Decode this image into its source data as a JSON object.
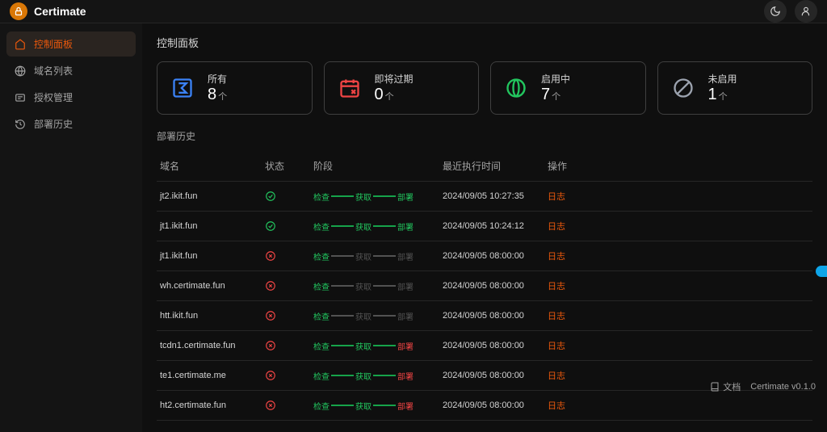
{
  "brand": {
    "name": "Certimate"
  },
  "sidebar": {
    "items": [
      {
        "label": "控制面板"
      },
      {
        "label": "域名列表"
      },
      {
        "label": "授权管理"
      },
      {
        "label": "部署历史"
      }
    ]
  },
  "page": {
    "title": "控制面板"
  },
  "stats": {
    "all": {
      "label": "所有",
      "value": "8",
      "unit": "个",
      "icon_color": "#3b82f6"
    },
    "expiring": {
      "label": "即将过期",
      "value": "0",
      "unit": "个",
      "icon_color": "#ef4444"
    },
    "active": {
      "label": "启用中",
      "value": "7",
      "unit": "个",
      "icon_color": "#22c55e"
    },
    "disabled": {
      "label": "未启用",
      "value": "1",
      "unit": "个",
      "icon_color": "#9ca3af"
    }
  },
  "history": {
    "section_title": "部署历史",
    "columns": {
      "domain": "域名",
      "status": "状态",
      "stage": "阶段",
      "time": "最近执行时间",
      "action": "操作"
    },
    "stage_labels": [
      "检查",
      "获取",
      "部署"
    ],
    "action_label": "日志",
    "colors": {
      "success": "#22c55e",
      "error": "#ef4444",
      "gray": "#525252",
      "green_line": "#16a34a"
    },
    "rows": [
      {
        "domain": "jt2.ikit.fun",
        "status": "success",
        "stages": [
          "g",
          "g",
          "g"
        ],
        "time": "2024/09/05 10:27:35"
      },
      {
        "domain": "jt1.ikit.fun",
        "status": "success",
        "stages": [
          "g",
          "g",
          "g"
        ],
        "time": "2024/09/05 10:24:12"
      },
      {
        "domain": "jt1.ikit.fun",
        "status": "error",
        "stages": [
          "g",
          "x",
          "x"
        ],
        "time": "2024/09/05 08:00:00"
      },
      {
        "domain": "wh.certimate.fun",
        "status": "error",
        "stages": [
          "g",
          "x",
          "x"
        ],
        "time": "2024/09/05 08:00:00"
      },
      {
        "domain": "htt.ikit.fun",
        "status": "error",
        "stages": [
          "g",
          "x",
          "x"
        ],
        "time": "2024/09/05 08:00:00"
      },
      {
        "domain": "tcdn1.certimate.fun",
        "status": "error",
        "stages": [
          "g",
          "g",
          "r"
        ],
        "time": "2024/09/05 08:00:00"
      },
      {
        "domain": "te1.certimate.me",
        "status": "error",
        "stages": [
          "g",
          "g",
          "r"
        ],
        "time": "2024/09/05 08:00:00"
      },
      {
        "domain": "ht2.certimate.fun",
        "status": "error",
        "stages": [
          "g",
          "g",
          "r"
        ],
        "time": "2024/09/05 08:00:00"
      }
    ]
  },
  "footer": {
    "docs": "文档",
    "version": "Certimate v0.1.0"
  }
}
